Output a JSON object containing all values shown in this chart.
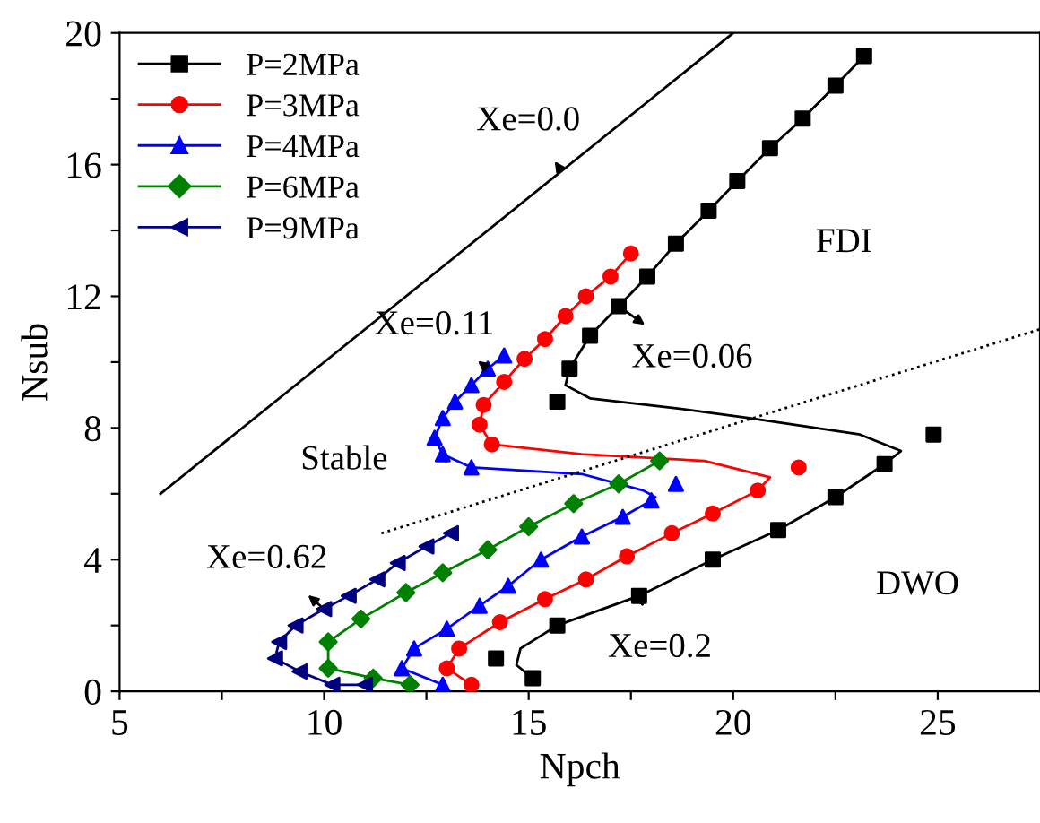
{
  "chart_data": {
    "type": "scatter",
    "xlabel": "Npch",
    "ylabel": "Nsub",
    "xlim": [
      5,
      27.5
    ],
    "ylim": [
      0,
      20
    ],
    "xticks": [
      5,
      {
        "value": 7.5,
        "label": null
      },
      10,
      {
        "value": 12.5,
        "label": null
      },
      15,
      {
        "value": 17.5,
        "label": null
      },
      20,
      {
        "value": 22.5,
        "label": null
      },
      25
    ],
    "yticks": [
      0,
      {
        "value": 2,
        "label": null
      },
      4,
      {
        "value": 6,
        "label": null
      },
      8,
      {
        "value": 10,
        "label": null
      },
      12,
      {
        "value": 14,
        "label": null
      },
      16,
      {
        "value": 18,
        "label": null
      },
      20
    ],
    "grid": false,
    "legend": "top left",
    "series": [
      {
        "name": "P=2MPa",
        "marker": "square",
        "color": "#000000",
        "x": [
          23.2,
          22.5,
          21.7,
          20.9,
          20.1,
          19.4,
          18.6,
          17.9,
          17.2,
          16.5,
          16.0,
          15.7,
          24.9,
          23.7,
          22.5,
          21.1,
          19.5,
          17.7,
          15.7,
          14.2,
          15.1
        ],
        "values": [
          19.3,
          18.4,
          17.4,
          16.5,
          15.5,
          14.6,
          13.6,
          12.6,
          11.7,
          10.8,
          9.8,
          8.8,
          7.8,
          6.9,
          5.9,
          4.9,
          4.0,
          2.9,
          2.0,
          1.0,
          0.4
        ]
      },
      {
        "type": "line",
        "marker": "none",
        "color": "#000000",
        "x": [
          23.2,
          22.5,
          21.7,
          20.9,
          20.1,
          19.4,
          18.6,
          17.9,
          17.2,
          16.5,
          16.0,
          15.9,
          16.5,
          18.6,
          20.4,
          23.1,
          24.1,
          23.7,
          22.5,
          21.1,
          19.5,
          17.7,
          15.7,
          14.8,
          14.7,
          15.1
        ],
        "values": [
          19.3,
          18.4,
          17.4,
          16.5,
          15.5,
          14.6,
          13.6,
          12.6,
          11.7,
          10.8,
          9.8,
          9.3,
          8.9,
          8.6,
          8.3,
          7.8,
          7.3,
          6.9,
          5.9,
          4.9,
          4.0,
          2.9,
          2.0,
          1.3,
          0.8,
          0.4
        ]
      },
      {
        "name": "P=3MPa",
        "marker": "circle",
        "color": "#ff0000",
        "x": [
          17.5,
          17.0,
          16.4,
          15.9,
          15.4,
          14.9,
          14.4,
          13.9,
          13.8,
          14.1,
          21.6,
          20.6,
          19.5,
          18.5,
          17.4,
          16.4,
          15.4,
          14.3,
          13.3,
          13.0,
          13.6
        ],
        "values": [
          13.3,
          12.6,
          12.0,
          11.4,
          10.7,
          10.1,
          9.4,
          8.7,
          8.1,
          7.5,
          6.8,
          6.1,
          5.4,
          4.8,
          4.1,
          3.4,
          2.8,
          2.1,
          1.3,
          0.7,
          0.2
        ]
      },
      {
        "type": "line",
        "marker": "none",
        "color": "#ff0000",
        "x": [
          17.5,
          17.0,
          16.4,
          15.9,
          15.4,
          14.9,
          14.4,
          13.9,
          13.8,
          14.1,
          16.3,
          19.3,
          20.9,
          20.6,
          19.5,
          18.5,
          17.4,
          16.4,
          15.4,
          14.3,
          13.3,
          13.0,
          13.6
        ],
        "values": [
          13.3,
          12.6,
          12.0,
          11.4,
          10.7,
          10.1,
          9.4,
          8.7,
          8.1,
          7.5,
          7.2,
          7.0,
          6.5,
          6.1,
          5.4,
          4.8,
          4.1,
          3.4,
          2.8,
          2.1,
          1.3,
          0.7,
          0.2
        ]
      },
      {
        "name": "P=4MPa",
        "marker": "triangle",
        "color": "#0000ff",
        "x": [
          14.4,
          14.0,
          13.6,
          13.2,
          12.9,
          12.7,
          12.9,
          13.6,
          18.6,
          18.0,
          17.3,
          16.3,
          15.3,
          14.5,
          13.8,
          13.0,
          12.2,
          11.9,
          12.9
        ],
        "values": [
          10.2,
          9.8,
          9.3,
          8.8,
          8.3,
          7.7,
          7.2,
          6.8,
          6.3,
          5.8,
          5.3,
          4.7,
          4.0,
          3.2,
          2.6,
          1.9,
          1.3,
          0.7,
          0.2
        ]
      },
      {
        "type": "line",
        "marker": "none",
        "color": "#0000ff",
        "x": [
          14.4,
          14.0,
          13.6,
          13.2,
          12.9,
          12.7,
          12.9,
          13.6,
          16.3,
          17.8,
          18.1,
          18.0,
          17.3,
          16.3,
          15.3,
          14.5,
          13.8,
          13.0,
          12.2,
          11.9,
          12.9
        ],
        "values": [
          10.2,
          9.8,
          9.3,
          8.8,
          8.3,
          7.7,
          7.2,
          6.8,
          6.6,
          6.1,
          5.9,
          5.8,
          5.3,
          4.7,
          4.0,
          3.2,
          2.6,
          1.9,
          1.3,
          0.7,
          0.2
        ]
      },
      {
        "name": "P=6MPa",
        "marker": "diamond",
        "color": "#008000",
        "x": [
          18.2,
          17.2,
          16.1,
          15.0,
          14.0,
          12.9,
          12.0,
          10.9,
          10.1,
          10.1,
          11.2,
          12.1
        ],
        "values": [
          7.0,
          6.3,
          5.7,
          5.0,
          4.3,
          3.6,
          3.0,
          2.2,
          1.5,
          0.7,
          0.4,
          0.2
        ]
      },
      {
        "type": "line",
        "marker": "none",
        "color": "#008000",
        "x": [
          18.2,
          17.2,
          16.1,
          15.0,
          14.0,
          12.9,
          12.0,
          10.9,
          10.1,
          10.1,
          11.2,
          12.1
        ],
        "values": [
          7.0,
          6.3,
          5.7,
          5.0,
          4.3,
          3.6,
          3.0,
          2.2,
          1.5,
          0.7,
          0.4,
          0.2
        ]
      },
      {
        "name": "P=9MPa",
        "marker": "triangle_left",
        "color": "#000080",
        "x": [
          13.1,
          12.5,
          11.8,
          11.3,
          10.6,
          10.0,
          9.3,
          8.9,
          8.8,
          9.4,
          10.2,
          11.0
        ],
        "values": [
          4.8,
          4.4,
          3.9,
          3.4,
          2.9,
          2.5,
          2.0,
          1.5,
          1.0,
          0.6,
          0.2,
          0.2
        ]
      },
      {
        "type": "line",
        "marker": "none",
        "color": "#000080",
        "x": [
          13.1,
          12.5,
          11.8,
          11.3,
          10.6,
          10.0,
          9.3,
          8.9,
          8.8,
          9.4,
          10.2,
          11.0
        ],
        "values": [
          4.8,
          4.4,
          3.9,
          3.4,
          2.9,
          2.5,
          2.0,
          1.5,
          1.0,
          0.6,
          0.2,
          0.2
        ]
      },
      {
        "type": "line",
        "marker": "none",
        "color": "#000000",
        "line_style": "solid",
        "x": [
          6.0,
          20.0
        ],
        "values": [
          6.0,
          20.0
        ]
      },
      {
        "type": "line",
        "marker": "none",
        "color": "#000000",
        "line_style": "dotted",
        "x": [
          11.4,
          27.5
        ],
        "values": [
          4.8,
          11.0
        ]
      }
    ],
    "annotations": [
      {
        "text": "Xe=0.0",
        "x": 15.8,
        "y": 15.8
      },
      "FDI",
      {
        "text": "Xe=0.06",
        "x": 17.2,
        "y": 11.7
      },
      {
        "text": "Xe=0.11",
        "x": 14.0,
        "y": 9.8
      },
      "Stable",
      {
        "text": "Xe=0.62",
        "x": 10.0,
        "y": 2.5
      },
      "DWO",
      {
        "text": "Xe=0.2",
        "x": 17.7,
        "y": 2.9
      }
    ]
  }
}
